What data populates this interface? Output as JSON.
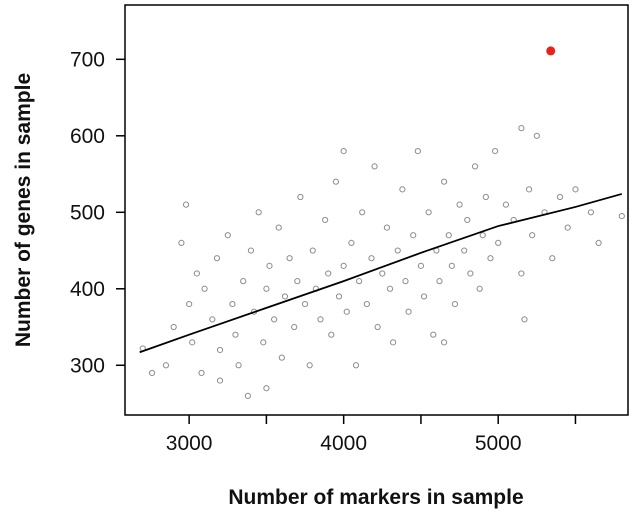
{
  "chart_data": {
    "type": "scatter",
    "x_label": "Number of markers in sample",
    "y_label": "Number of genes in sample",
    "xlim": [
      2585,
      5840
    ],
    "ylim": [
      235,
      771
    ],
    "xticks": [
      3000,
      4000,
      5000
    ],
    "xminor_ticks": [
      3500,
      4500,
      5500
    ],
    "yticks": [
      300,
      400,
      500,
      600,
      700
    ],
    "points": {
      "color": "#000000",
      "x": [
        2700,
        2760,
        2850,
        2900,
        2950,
        2980,
        3000,
        3020,
        3050,
        3080,
        3100,
        3150,
        3180,
        3200,
        3250,
        3280,
        3300,
        3320,
        3350,
        3380,
        3400,
        3420,
        3450,
        3480,
        3500,
        3520,
        3550,
        3580,
        3600,
        3620,
        3650,
        3680,
        3700,
        3720,
        3750,
        3780,
        3800,
        3820,
        3850,
        3880,
        3900,
        3920,
        3950,
        3970,
        4000,
        4000,
        4020,
        4050,
        4080,
        4100,
        4120,
        4150,
        4180,
        4200,
        4220,
        4250,
        4280,
        4300,
        4320,
        4350,
        4380,
        4400,
        4420,
        4450,
        4480,
        4500,
        4520,
        4550,
        4580,
        4600,
        4620,
        4650,
        4680,
        4700,
        4720,
        4750,
        4780,
        4800,
        4820,
        4850,
        4880,
        4900,
        4920,
        4950,
        4980,
        5000,
        5050,
        5100,
        5150,
        5150,
        5200,
        5220,
        5250,
        5300,
        5350,
        5400,
        5450,
        5500,
        5600,
        5650,
        5800,
        5170,
        4650,
        3500,
        3200
      ],
      "y": [
        322,
        290,
        300,
        350,
        460,
        510,
        380,
        330,
        420,
        290,
        400,
        360,
        440,
        320,
        470,
        380,
        340,
        300,
        410,
        260,
        450,
        370,
        500,
        330,
        400,
        430,
        360,
        480,
        310,
        390,
        440,
        350,
        410,
        520,
        380,
        300,
        450,
        400,
        360,
        490,
        420,
        340,
        540,
        390,
        430,
        580,
        370,
        460,
        300,
        410,
        500,
        380,
        440,
        560,
        350,
        420,
        480,
        400,
        330,
        450,
        530,
        410,
        370,
        470,
        580,
        430,
        390,
        500,
        340,
        450,
        410,
        540,
        470,
        430,
        380,
        510,
        450,
        490,
        420,
        560,
        400,
        470,
        520,
        440,
        580,
        460,
        510,
        490,
        420,
        610,
        530,
        470,
        600,
        500,
        440,
        520,
        480,
        530,
        500,
        460,
        495,
        360,
        330,
        270,
        280
      ]
    },
    "highlight": {
      "x": 5340,
      "y": 711,
      "color": "#e8221d"
    },
    "fit": {
      "color": "#000000",
      "x": [
        2680,
        3000,
        3500,
        4000,
        4500,
        5000,
        5500,
        5800
      ],
      "y": [
        317,
        340,
        375,
        410,
        447,
        482,
        507,
        524
      ]
    }
  }
}
